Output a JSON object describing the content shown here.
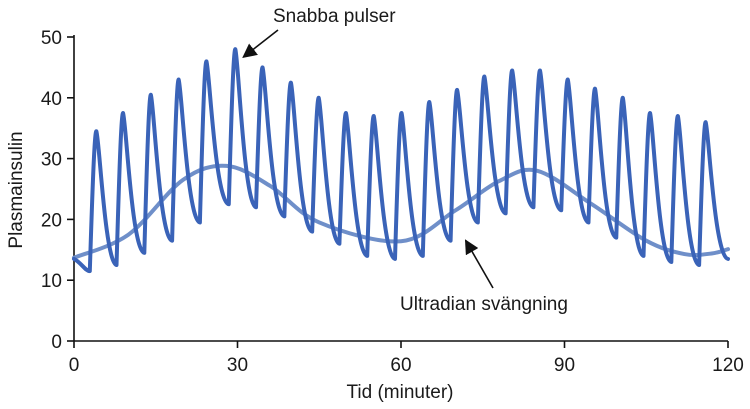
{
  "chart_data": {
    "type": "line",
    "title": "",
    "xlabel": "Tid (minuter)",
    "ylabel": "Plasmainsulin",
    "xlim": [
      0,
      120
    ],
    "ylim": [
      0,
      50
    ],
    "xticks": [
      0,
      30,
      60,
      90,
      120
    ],
    "yticks": [
      0,
      10,
      20,
      30,
      40,
      50
    ],
    "grid": false,
    "legend": "none",
    "series": [
      {
        "color": "#3a63b8",
        "style": "pulsatile",
        "pulse_period_minutes": 5.15,
        "peaks": [
          {
            "x": 4.1,
            "y": 34.5
          },
          {
            "x": 9.0,
            "y": 37.5
          },
          {
            "x": 14.1,
            "y": 40.5
          },
          {
            "x": 19.2,
            "y": 43.0
          },
          {
            "x": 24.3,
            "y": 46.0
          },
          {
            "x": 29.6,
            "y": 48.0
          },
          {
            "x": 34.6,
            "y": 45.0
          },
          {
            "x": 39.8,
            "y": 42.5
          },
          {
            "x": 44.9,
            "y": 40.0
          },
          {
            "x": 49.9,
            "y": 37.5
          },
          {
            "x": 55.0,
            "y": 37.0
          },
          {
            "x": 60.1,
            "y": 37.5
          },
          {
            "x": 65.2,
            "y": 39.3
          },
          {
            "x": 70.3,
            "y": 41.3
          },
          {
            "x": 75.3,
            "y": 43.5
          },
          {
            "x": 80.4,
            "y": 44.5
          },
          {
            "x": 85.5,
            "y": 44.5
          },
          {
            "x": 90.6,
            "y": 43.0
          },
          {
            "x": 95.6,
            "y": 41.5
          },
          {
            "x": 100.7,
            "y": 40.0
          },
          {
            "x": 105.7,
            "y": 37.5
          },
          {
            "x": 110.8,
            "y": 37.0
          },
          {
            "x": 115.9,
            "y": 36.0
          }
        ],
        "troughs": [
          {
            "x": 2.9,
            "y": 11.5
          },
          {
            "x": 7.8,
            "y": 12.5
          },
          {
            "x": 12.9,
            "y": 14.5
          },
          {
            "x": 18.0,
            "y": 16.5
          },
          {
            "x": 23.1,
            "y": 19.5
          },
          {
            "x": 28.4,
            "y": 22.5
          },
          {
            "x": 33.4,
            "y": 22.0
          },
          {
            "x": 38.6,
            "y": 20.5
          },
          {
            "x": 43.7,
            "y": 18.0
          },
          {
            "x": 48.7,
            "y": 16.0
          },
          {
            "x": 53.8,
            "y": 14.0
          },
          {
            "x": 58.9,
            "y": 13.5
          },
          {
            "x": 64.0,
            "y": 14.0
          },
          {
            "x": 69.1,
            "y": 16.5
          },
          {
            "x": 74.1,
            "y": 19.5
          },
          {
            "x": 79.2,
            "y": 21.0
          },
          {
            "x": 84.3,
            "y": 22.0
          },
          {
            "x": 89.4,
            "y": 21.5
          },
          {
            "x": 94.4,
            "y": 19.5
          },
          {
            "x": 99.5,
            "y": 17.0
          },
          {
            "x": 104.5,
            "y": 14.0
          },
          {
            "x": 109.6,
            "y": 13.0
          },
          {
            "x": 114.7,
            "y": 12.5
          },
          {
            "x": 120.0,
            "y": 13.5
          }
        ]
      },
      {
        "color": "#6f8fc9",
        "style": "smooth",
        "points": [
          [
            0,
            13.7
          ],
          [
            10,
            17.5
          ],
          [
            20,
            26.5
          ],
          [
            28,
            28.8
          ],
          [
            36,
            25.5
          ],
          [
            45,
            19.5
          ],
          [
            60,
            16.4
          ],
          [
            70,
            21.5
          ],
          [
            78,
            26.3
          ],
          [
            85,
            28.0
          ],
          [
            95,
            22.5
          ],
          [
            105,
            16.5
          ],
          [
            112,
            14.3
          ],
          [
            117,
            14.4
          ],
          [
            120,
            15.1
          ]
        ]
      }
    ],
    "annotations": [
      {
        "text": "Snabba pulser",
        "target": {
          "x": 29.6,
          "y": 48.0
        }
      },
      {
        "text": "Ultradian svängning",
        "target": {
          "x": 71.5,
          "y": 19.5
        }
      }
    ]
  }
}
